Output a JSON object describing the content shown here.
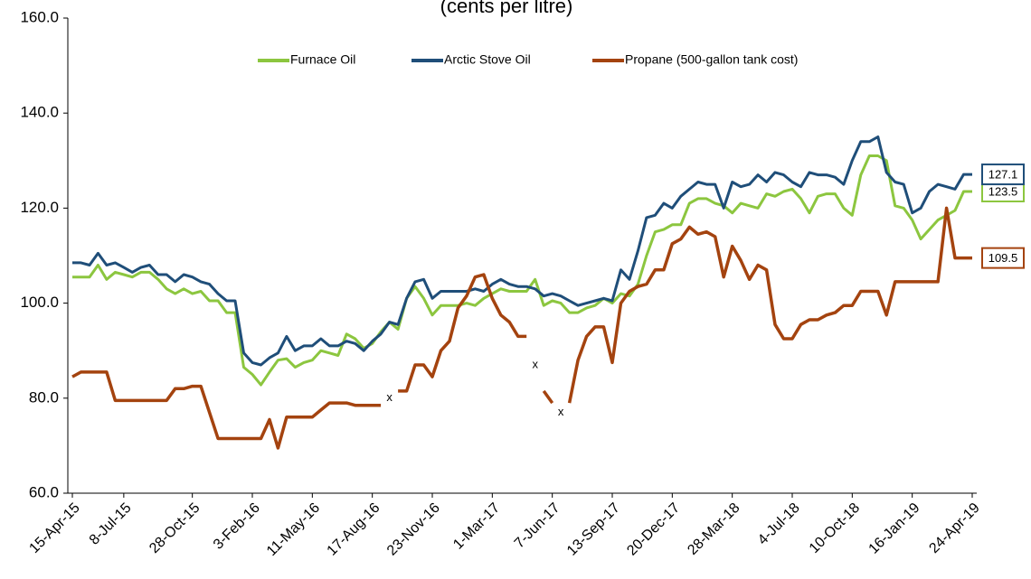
{
  "chart_data": {
    "type": "line",
    "title": "(cents per litre)",
    "categories": [
      "15-Apr-15",
      null,
      null,
      null,
      null,
      null,
      "8-Jul-15",
      null,
      null,
      null,
      null,
      null,
      null,
      null,
      "28-Oct-15",
      null,
      null,
      null,
      null,
      null,
      null,
      "3-Feb-16",
      null,
      null,
      null,
      null,
      null,
      null,
      "11-May-16",
      null,
      null,
      null,
      null,
      null,
      null,
      "17-Aug-16",
      null,
      null,
      null,
      null,
      null,
      null,
      "23-Nov-16",
      null,
      null,
      null,
      null,
      null,
      null,
      "1-Mar-17",
      null,
      null,
      null,
      null,
      null,
      null,
      "7-Jun-17",
      null,
      null,
      null,
      null,
      null,
      null,
      "13-Sep-17",
      null,
      null,
      null,
      null,
      null,
      null,
      "20-Dec-17",
      null,
      null,
      null,
      null,
      null,
      null,
      "28-Mar-18",
      null,
      null,
      null,
      null,
      null,
      null,
      "4-Jul-18",
      null,
      null,
      null,
      null,
      null,
      null,
      "10-Oct-18",
      null,
      null,
      null,
      null,
      null,
      null,
      "16-Jan-19",
      null,
      null,
      null,
      null,
      null,
      null,
      "24-Apr-19"
    ],
    "series": [
      {
        "name": "Furnace Oil",
        "color": "#8cc63f",
        "values": [
          105.5,
          105.5,
          105.5,
          108,
          105,
          106.5,
          106,
          105.5,
          106.5,
          106.5,
          105,
          103,
          102,
          103,
          102,
          102.5,
          100.5,
          100.5,
          98,
          98,
          86.5,
          85,
          82.8,
          85.5,
          88,
          88.3,
          86.5,
          87.5,
          88,
          90,
          89.5,
          89,
          93.5,
          92.5,
          90.5,
          91.5,
          94,
          96,
          94.5,
          101,
          103.5,
          101,
          97.5,
          99.5,
          99.5,
          99.5,
          100,
          99.5,
          101,
          102,
          103,
          102.5,
          102.5,
          102.5,
          105,
          99.5,
          100.5,
          100,
          98,
          98,
          99,
          99.5,
          101,
          100,
          102,
          101.5,
          104,
          110,
          115,
          115.5,
          116.5,
          116.5,
          121,
          122,
          122,
          121,
          120.5,
          119,
          121,
          120.5,
          120,
          123,
          122.5,
          123.5,
          124,
          122,
          119,
          122.5,
          123,
          123,
          120,
          118.5,
          127,
          131,
          131,
          130,
          120.5,
          120,
          117.5,
          113.5,
          115.5,
          117.5,
          118.5,
          119.5,
          123.5,
          123.5
        ]
      },
      {
        "name": "Arctic Stove Oil",
        "color": "#1f4e79",
        "values": [
          108.5,
          108.5,
          108,
          110.5,
          108,
          108.5,
          107.5,
          106.5,
          107.5,
          108,
          106,
          106,
          104.5,
          106,
          105.5,
          104.5,
          104,
          102,
          100.5,
          100.5,
          89.5,
          87.5,
          87,
          88.5,
          89.5,
          93,
          90,
          91,
          91,
          92.5,
          91,
          91,
          92,
          91.5,
          90,
          92,
          93.5,
          96,
          95.5,
          101,
          104.5,
          105,
          101,
          102.5,
          102.5,
          102.5,
          102.5,
          103,
          102.5,
          104,
          105,
          104,
          103.5,
          103.5,
          103,
          101.5,
          102,
          101.5,
          100.5,
          99.5,
          100,
          100.5,
          101,
          100.5,
          107,
          105,
          111,
          118,
          118.5,
          121,
          120,
          122.5,
          124,
          125.5,
          125,
          125,
          120,
          125.5,
          124.5,
          125,
          127,
          125.5,
          127.5,
          127,
          125.5,
          124.5,
          127.5,
          127,
          127,
          126.5,
          125,
          130,
          134,
          134,
          135,
          127.5,
          125.5,
          125,
          119,
          120,
          123.5,
          125,
          124.5,
          124,
          127.1,
          127.1
        ]
      },
      {
        "name": "Propane (500-gallon tank cost)",
        "color": "#a4430f",
        "values": [
          84.5,
          85.5,
          85.5,
          85.5,
          85.5,
          79.5,
          79.5,
          79.5,
          79.5,
          79.5,
          79.5,
          79.5,
          82,
          82,
          82.5,
          82.5,
          77,
          71.5,
          71.5,
          71.5,
          71.5,
          71.5,
          71.5,
          75.5,
          69.5,
          76,
          76,
          76,
          76,
          77.5,
          79,
          79,
          79,
          78.5,
          78.5,
          78.5,
          78.5,
          null,
          81.5,
          81.5,
          87,
          87,
          84.5,
          90,
          92,
          99,
          101.5,
          105.5,
          106,
          101,
          97.5,
          96,
          93,
          93,
          null,
          81.5,
          79,
          null,
          79,
          88,
          93,
          95,
          95,
          87.5,
          100,
          102.5,
          103.5,
          104,
          107,
          107,
          112.5,
          113.5,
          116,
          114.5,
          115,
          114,
          105.5,
          112,
          109,
          105,
          108,
          107,
          95.5,
          92.5,
          92.5,
          95.5,
          96.5,
          96.5,
          97.5,
          98,
          99.5,
          99.5,
          102.5,
          102.5,
          102.5,
          97.5,
          104.5,
          104.5,
          104.5,
          104.5,
          104.5,
          104.5,
          120,
          109.5,
          109.5,
          109.5
        ]
      }
    ],
    "annotations": [
      {
        "text": "x",
        "index": 37,
        "value": 80
      },
      {
        "text": "x",
        "index": 54,
        "value": 87
      },
      {
        "text": "x",
        "index": 57,
        "value": 77
      }
    ],
    "ylim": [
      60,
      160
    ],
    "yticks": [
      {
        "value": 60,
        "label": "60.0"
      },
      {
        "value": 80,
        "label": "80.0"
      },
      {
        "value": 100,
        "label": "100.0"
      },
      {
        "value": 120,
        "label": "120.0"
      },
      {
        "value": 140,
        "label": "140.0"
      },
      {
        "value": 160,
        "label": "160.0"
      }
    ],
    "grid": false,
    "legend": "top"
  }
}
